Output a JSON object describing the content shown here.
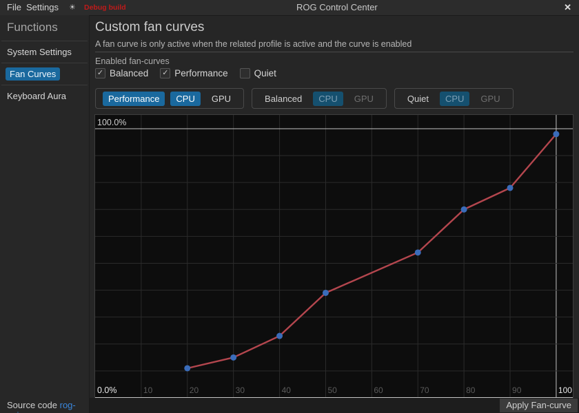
{
  "titlebar": {
    "menus": [
      "File",
      "Settings"
    ],
    "theme_icon_glyph": "☀",
    "debug_label": "Debug build",
    "title": "ROG Control Center",
    "close_glyph": "✕"
  },
  "sidebar": {
    "header": "Functions",
    "items": [
      {
        "label": "System Settings",
        "active": false
      },
      {
        "label": "Fan Curves",
        "active": true
      },
      {
        "label": "Keyboard Aura",
        "active": false
      }
    ],
    "footer_text": "Source code ",
    "footer_link": "rog-gui."
  },
  "main": {
    "title": "Custom fan curves",
    "subtitle": "A fan curve is only active when the related profile is active and the curve is enabled",
    "enabled_label": "Enabled fan-curves",
    "checkboxes": [
      {
        "label": "Balanced",
        "checked": true,
        "glyph": "✓"
      },
      {
        "label": "Performance",
        "checked": true,
        "glyph": "✓"
      },
      {
        "label": "Quiet",
        "checked": false,
        "glyph": ""
      }
    ],
    "tab_groups": [
      {
        "profile": "Performance",
        "profile_active": true,
        "tabs": [
          {
            "label": "CPU",
            "selected": true
          },
          {
            "label": "GPU",
            "selected": false
          }
        ]
      },
      {
        "profile": "Balanced",
        "profile_active": false,
        "tabs": [
          {
            "label": "CPU",
            "selected": true
          },
          {
            "label": "GPU",
            "selected": false
          }
        ]
      },
      {
        "profile": "Quiet",
        "profile_active": false,
        "tabs": [
          {
            "label": "CPU",
            "selected": true
          },
          {
            "label": "GPU",
            "selected": false
          }
        ]
      }
    ],
    "apply_button": "Apply Fan-curve"
  },
  "chart_data": {
    "type": "line",
    "series": [
      {
        "name": "performance-cpu-fan-curve",
        "x": [
          20,
          30,
          40,
          50,
          70,
          80,
          90,
          100
        ],
        "y": [
          11,
          15,
          23,
          39,
          54,
          70,
          78,
          98
        ]
      }
    ],
    "x_ticks": [
      10,
      20,
      30,
      40,
      50,
      60,
      70,
      80,
      90,
      100
    ],
    "y_axis_labels": {
      "top": "100.0%",
      "bottom": "0.0%"
    },
    "xlim": [
      0,
      103.6
    ],
    "ylim": [
      0,
      105.1
    ],
    "grid": true,
    "legend": "none",
    "highlight_x": 100,
    "highlight_y": 100,
    "line_color": "#b4464e",
    "point_color": "#3a6cba",
    "grid_color": "#2b2b2b",
    "highlight_line_color": "#c3c3c3",
    "tick_color": "#5a5a5a",
    "tick_highlight_color": "#eaeaea",
    "y_label_color": "#cdcdcd",
    "background": "#0d0d0d"
  }
}
